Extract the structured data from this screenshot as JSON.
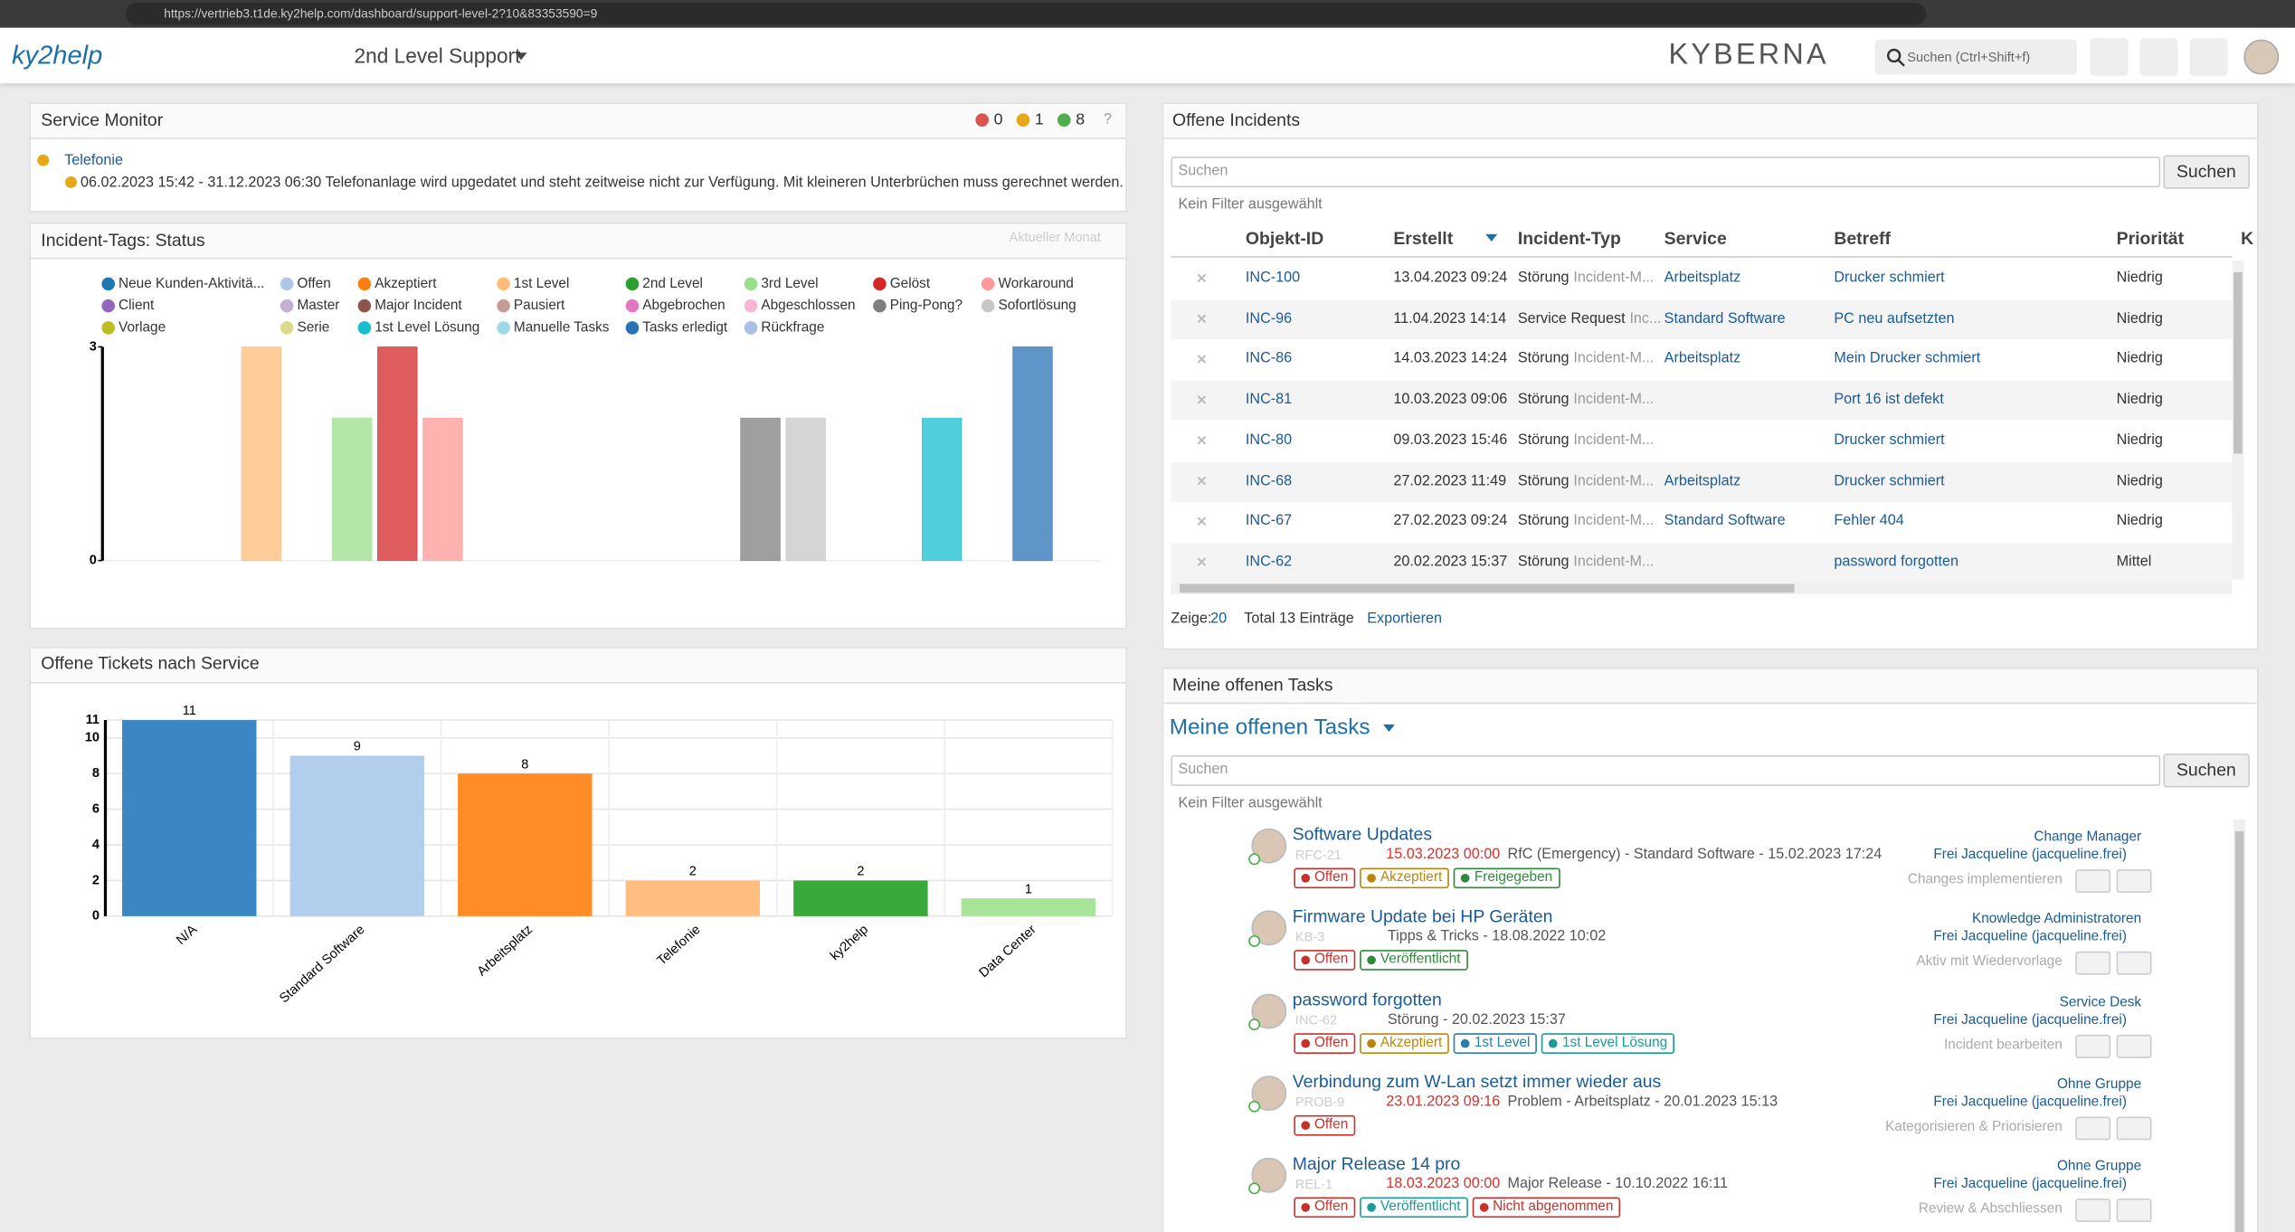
{
  "browser": {
    "url": "https://vertrieb3.t1de.ky2help.com/dashboard/support-level-2?10&83353590=9"
  },
  "header": {
    "logo": "ky2help",
    "dashboard": "2nd Level Support",
    "brand": "KYBERNA",
    "search": "Suchen (Ctrl+Shift+f)"
  },
  "service_monitor": {
    "title": "Service Monitor",
    "counts": [
      0,
      1,
      8
    ],
    "help": "?",
    "item": "Telefonie",
    "message": "06.02.2023 15:42 - 31.12.2023 06:30 Telefonanlage wird upgedatet und steht zeitweise nicht zur Verfügung. Mit kleineren Unterbrüchen muss gerechnet werden."
  },
  "chart_data": [
    {
      "type": "bar",
      "title": "Incident-Tags: Status",
      "subtitle": "Aktueller Monat",
      "categories": [
        null
      ],
      "series": [
        {
          "name": "Neue Kunden-Aktivitä...",
          "color": "#1f77b4",
          "values": [
            0
          ]
        },
        {
          "name": "Offen",
          "color": "#aec7e8",
          "values": [
            0
          ]
        },
        {
          "name": "Akzeptiert",
          "color": "#ff7f0e",
          "values": [
            0
          ]
        },
        {
          "name": "1st Level",
          "color": "#ffbb78",
          "values": [
            3
          ]
        },
        {
          "name": "2nd Level",
          "color": "#2ca02c",
          "values": [
            0
          ]
        },
        {
          "name": "3rd Level",
          "color": "#98df8a",
          "values": [
            2
          ]
        },
        {
          "name": "Gelöst",
          "color": "#d62728",
          "values": [
            3
          ]
        },
        {
          "name": "Workaround",
          "color": "#ff9896",
          "values": [
            2
          ]
        },
        {
          "name": "Client",
          "color": "#9467bd",
          "values": [
            0
          ]
        },
        {
          "name": "Master",
          "color": "#c5b0d5",
          "values": [
            0
          ]
        },
        {
          "name": "Major Incident",
          "color": "#8c564b",
          "values": [
            0
          ]
        },
        {
          "name": "Pausiert",
          "color": "#c49c94",
          "values": [
            0
          ]
        },
        {
          "name": "Abgebrochen",
          "color": "#e377c2",
          "values": [
            0
          ]
        },
        {
          "name": "Abgeschlossen",
          "color": "#f7b6d2",
          "values": [
            0
          ]
        },
        {
          "name": "Ping-Pong?",
          "color": "#7f7f7f",
          "values": [
            2
          ]
        },
        {
          "name": "Sofortlösung",
          "color": "#c7c7c7",
          "values": [
            2
          ]
        },
        {
          "name": "Vorlage",
          "color": "#bcbd22",
          "values": [
            0
          ]
        },
        {
          "name": "Serie",
          "color": "#dbdb8d",
          "values": [
            0
          ]
        },
        {
          "name": "1st Level Lösung",
          "color": "#17becf",
          "values": [
            2
          ]
        },
        {
          "name": "Manuelle Tasks",
          "color": "#9edae5",
          "values": [
            0
          ]
        },
        {
          "name": "Tasks erledigt",
          "color": "#2a72b5",
          "values": [
            3
          ]
        },
        {
          "name": "Rückfrage",
          "color": "#a9bde6",
          "values": [
            0
          ]
        }
      ],
      "ylim": [
        0,
        3
      ],
      "yticks": [
        0,
        3
      ],
      "grid": false
    },
    {
      "type": "bar",
      "title": "Offene Tickets nach Service",
      "categories": [
        "N/A",
        "Standard Software",
        "Arbeitsplatz",
        "Telefonie",
        "ky2help",
        "Data Center"
      ],
      "values": [
        11,
        9,
        8,
        2,
        2,
        1
      ],
      "colors": [
        "#3a87c4",
        "#b3cdec",
        "#ff8c25",
        "#ffbe80",
        "#3aa83a",
        "#a8e49a"
      ],
      "ylim": [
        0,
        11
      ],
      "yticks": [
        0,
        2,
        4,
        6,
        8,
        10,
        11
      ],
      "grid": true
    }
  ],
  "incidents": {
    "title": "Offene Incidents",
    "search": "Suchen",
    "button": "Suchen",
    "filter": "Kein Filter ausgewählt",
    "columns": [
      "Objekt-ID",
      "Erstellt",
      "Incident-Typ",
      "Service",
      "Betreff",
      "Priorität",
      "K"
    ],
    "rows": [
      {
        "id": "INC-100",
        "created": "13.04.2023 09:24",
        "type": "Störung",
        "subtype": "Incident-M...",
        "service": "Arbeitsplatz",
        "subject": "Drucker schmiert",
        "priority": "Niedrig"
      },
      {
        "id": "INC-96",
        "created": "11.04.2023 14:14",
        "type": "Service Request",
        "subtype": "Inc...",
        "service": "Standard Software",
        "subject": "PC neu aufsetzten",
        "priority": "Niedrig"
      },
      {
        "id": "INC-86",
        "created": "14.03.2023 14:24",
        "type": "Störung",
        "subtype": "Incident-M...",
        "service": "Arbeitsplatz",
        "subject": "Mein Drucker schmiert",
        "priority": "Niedrig"
      },
      {
        "id": "INC-81",
        "created": "10.03.2023 09:06",
        "type": "Störung",
        "subtype": "Incident-M...",
        "service": null,
        "subject": "Port 16 ist defekt",
        "priority": "Niedrig"
      },
      {
        "id": "INC-80",
        "created": "09.03.2023 15:46",
        "type": "Störung",
        "subtype": "Incident-M...",
        "service": null,
        "subject": "Drucker schmiert",
        "priority": "Niedrig"
      },
      {
        "id": "INC-68",
        "created": "27.02.2023 11:49",
        "type": "Störung",
        "subtype": "Incident-M...",
        "service": "Arbeitsplatz",
        "subject": "Drucker schmiert",
        "priority": "Niedrig"
      },
      {
        "id": "INC-67",
        "created": "27.02.2023 09:24",
        "type": "Störung",
        "subtype": "Incident-M...",
        "service": "Standard Software",
        "subject": "Fehler 404",
        "priority": "Niedrig"
      },
      {
        "id": "INC-62",
        "created": "20.02.2023 15:37",
        "type": "Störung",
        "subtype": "Incident-M...",
        "service": null,
        "subject": "password forgotten",
        "priority": "Mittel"
      }
    ],
    "show_label": "Zeige:",
    "page_size": "20",
    "total": "Total 13 Einträge",
    "export": "Exportieren"
  },
  "tasks": {
    "title": "Meine offenen Tasks",
    "heading": "Meine offenen Tasks",
    "search": "Suchen",
    "button": "Suchen",
    "filter": "Kein Filter ausgewählt",
    "items": [
      {
        "title": "Software Updates",
        "ref": "RFC-21",
        "due": "15.03.2023 00:00",
        "desc": "RfC (Emergency) - Standard Software - 15.02.2023 17:24",
        "tags": [
          {
            "label": "Offen",
            "color": "#c9302c"
          },
          {
            "label": "Akzeptiert",
            "color": "#b8860b"
          },
          {
            "label": "Freigegeben",
            "color": "#2e8b3a"
          }
        ],
        "group": "Change Manager",
        "person": "Frei Jacqueline (jacqueline.frei)",
        "action": "Changes implementieren"
      },
      {
        "title": "Firmware Update bei HP Geräten",
        "ref": "KB-3",
        "due": null,
        "desc": "Tipps & Tricks - 18.08.2022 10:02",
        "tags": [
          {
            "label": "Offen",
            "color": "#c9302c"
          },
          {
            "label": "Veröffentlicht",
            "color": "#2e8b3a"
          }
        ],
        "group": "Knowledge Administratoren",
        "person": "Frei Jacqueline (jacqueline.frei)",
        "action": "Aktiv mit Wiedervorlage"
      },
      {
        "title": "password forgotten",
        "ref": "INC-62",
        "due": null,
        "desc": "Störung - 20.02.2023 15:37",
        "tags": [
          {
            "label": "Offen",
            "color": "#c9302c"
          },
          {
            "label": "Akzeptiert",
            "color": "#b8860b"
          },
          {
            "label": "1st Level",
            "color": "#2a7fa8"
          },
          {
            "label": "1st Level Lösung",
            "color": "#1a9a9a"
          }
        ],
        "group": "Service Desk",
        "person": "Frei Jacqueline (jacqueline.frei)",
        "action": "Incident bearbeiten"
      },
      {
        "title": "Verbindung zum W-Lan setzt immer wieder aus",
        "ref": "PROB-9",
        "due": "23.01.2023 09:16",
        "desc": "Problem - Arbeitsplatz - 20.01.2023 15:13",
        "tags": [
          {
            "label": "Offen",
            "color": "#c9302c"
          }
        ],
        "group": "Ohne Gruppe",
        "person": "Frei Jacqueline (jacqueline.frei)",
        "action": "Kategorisieren & Priorisieren"
      },
      {
        "title": "Major Release 14 pro",
        "ref": "REL-1",
        "due": "18.03.2023 00:00",
        "desc": "Major Release - 10.10.2022 16:11",
        "tags": [
          {
            "label": "Offen",
            "color": "#c9302c"
          },
          {
            "label": "Veröffentlicht",
            "color": "#1a9a9a"
          },
          {
            "label": "Nicht abgenommen",
            "color": "#c9302c"
          }
        ],
        "group": "Ohne Gruppe",
        "person": "Frei Jacqueline (jacqueline.frei)",
        "action": "Review & Abschliessen"
      }
    ]
  }
}
